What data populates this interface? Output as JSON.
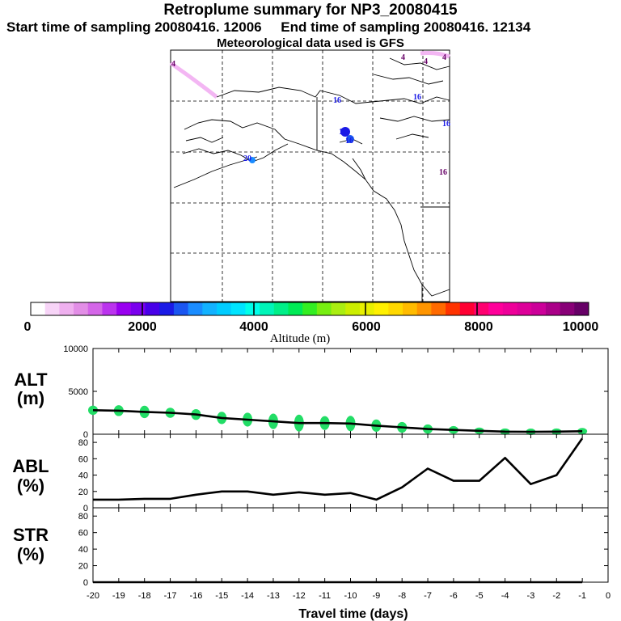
{
  "header": {
    "title": "Retroplume summary for NP3_20080415",
    "start_label": "Start time of sampling 20080416. 12006",
    "end_label": "End time of sampling 20080416. 12134",
    "met_label": "Meteorological data used is GFS"
  },
  "colors": {
    "plume_green": "#22dd66",
    "trajectory_line": "#000000",
    "map_path": "#ff99ff"
  },
  "map": {
    "markers": [
      "4",
      "4",
      "4",
      "16",
      "16",
      "16",
      "16",
      "16",
      "16",
      "20",
      "4"
    ]
  },
  "colorbar": {
    "tick_labels": [
      "0",
      "2000",
      "4000",
      "6000",
      "8000",
      "10000"
    ],
    "xlabel": "Altitude (m)",
    "colors": [
      "#ffffff",
      "#f7d4f7",
      "#efb0ef",
      "#e28ee6",
      "#d466e8",
      "#bb33ee",
      "#9900f0",
      "#7a00ee",
      "#4800e8",
      "#1a1ae6",
      "#1a55f0",
      "#1a8cff",
      "#12b2ff",
      "#00ccff",
      "#00e4ff",
      "#00ffea",
      "#00f5b8",
      "#00ef88",
      "#00ea55",
      "#33ee22",
      "#77ee11",
      "#aaee11",
      "#ccee00",
      "#e8f000",
      "#fff000",
      "#ffd800",
      "#ffbb00",
      "#ff9500",
      "#ff6a00",
      "#ff3300",
      "#ff0033",
      "#ff0070",
      "#ff009a",
      "#ee0099",
      "#dd0099",
      "#cc0099",
      "#aa0088",
      "#880077",
      "#660066"
    ]
  },
  "chart_data": [
    {
      "type": "line",
      "panel": "ALT",
      "ylabel_line1": "ALT",
      "ylabel_line2": "(m)",
      "ylim": [
        0,
        10000
      ],
      "yticks": [
        "0",
        "5000",
        "10000"
      ],
      "x": [
        -20,
        -19,
        -18,
        -17,
        -16,
        -15,
        -14,
        -13,
        -12,
        -11,
        -10,
        -9,
        -8,
        -7,
        -6,
        -5,
        -4,
        -3,
        -2,
        -1
      ],
      "values": [
        2800,
        2750,
        2600,
        2500,
        2300,
        1900,
        1700,
        1500,
        1300,
        1300,
        1250,
        1000,
        800,
        600,
        500,
        400,
        300,
        280,
        300,
        350
      ],
      "plume_spread": [
        600,
        700,
        800,
        650,
        700,
        800,
        900,
        1000,
        1100,
        900,
        1000,
        800,
        700,
        600,
        500,
        400,
        350,
        350,
        350,
        350
      ]
    },
    {
      "type": "line",
      "panel": "ABL",
      "ylabel_line1": "ABL",
      "ylabel_line2": "(%)",
      "ylim": [
        0,
        90
      ],
      "yticks": [
        "0",
        "20",
        "40",
        "60",
        "80"
      ],
      "x": [
        -20,
        -19,
        -18,
        -17,
        -16,
        -15,
        -14,
        -13,
        -12,
        -11,
        -10,
        -9,
        -8,
        -7,
        -6,
        -5,
        -4,
        -3,
        -2,
        -1
      ],
      "values": [
        10,
        10,
        11,
        11,
        16,
        20,
        20,
        16,
        19,
        16,
        18,
        10,
        25,
        48,
        33,
        33,
        61,
        29,
        40,
        85
      ]
    },
    {
      "type": "line",
      "panel": "STR",
      "ylabel_line1": "STR",
      "ylabel_line2": "(%)",
      "ylim": [
        0,
        90
      ],
      "yticks": [
        "0",
        "20",
        "40",
        "60",
        "80"
      ],
      "x": [
        -20,
        -19,
        -18,
        -17,
        -16,
        -15,
        -14,
        -13,
        -12,
        -11,
        -10,
        -9,
        -8,
        -7,
        -6,
        -5,
        -4,
        -3,
        -2,
        -1
      ],
      "values": [
        0,
        0,
        0,
        0,
        0,
        0,
        0,
        0,
        0,
        0,
        0,
        0,
        0,
        0,
        0,
        0,
        0,
        0,
        0,
        0
      ],
      "xlabel": "Travel time (days)",
      "xticks": [
        "-20",
        "-19",
        "-18",
        "-17",
        "-16",
        "-15",
        "-14",
        "-13",
        "-12",
        "-11",
        "-10",
        "-9",
        "-8",
        "-7",
        "-6",
        "-5",
        "-4",
        "-3",
        "-2",
        "-1",
        "0"
      ]
    }
  ]
}
